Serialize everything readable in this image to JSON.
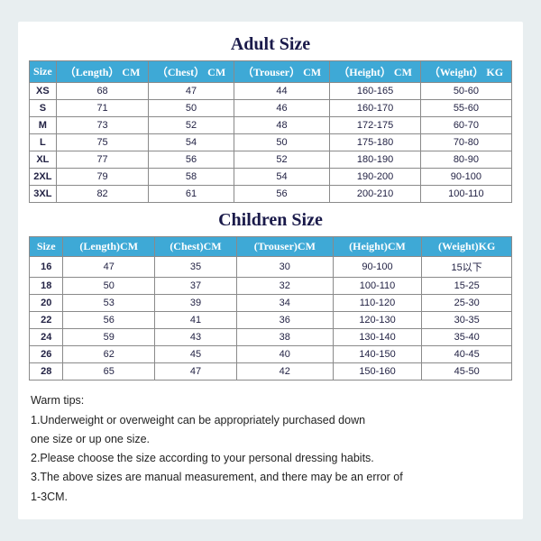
{
  "adult": {
    "title": "Adult Size",
    "columns": [
      "Size",
      "（Length） CM",
      "（Chest） CM",
      "（Trouser） CM",
      "（Height） CM",
      "（Weight） KG"
    ],
    "rows": [
      [
        "XS",
        "68",
        "47",
        "44",
        "160-165",
        "50-60"
      ],
      [
        "S",
        "71",
        "50",
        "46",
        "160-170",
        "55-60"
      ],
      [
        "M",
        "73",
        "52",
        "48",
        "172-175",
        "60-70"
      ],
      [
        "L",
        "75",
        "54",
        "50",
        "175-180",
        "70-80"
      ],
      [
        "XL",
        "77",
        "56",
        "52",
        "180-190",
        "80-90"
      ],
      [
        "2XL",
        "79",
        "58",
        "54",
        "190-200",
        "90-100"
      ],
      [
        "3XL",
        "82",
        "61",
        "56",
        "200-210",
        "100-110"
      ]
    ],
    "header_bg": "#3ea9d6",
    "header_fg": "#ffffff",
    "border_color": "#8a8a8a",
    "title_color": "#1a1a4a"
  },
  "children": {
    "title": "Children Size",
    "columns": [
      "Size",
      "(Length)CM",
      "(Chest)CM",
      "(Trouser)CM",
      "(Height)CM",
      "(Weight)KG"
    ],
    "rows": [
      [
        "16",
        "47",
        "35",
        "30",
        "90-100",
        "15以下"
      ],
      [
        "18",
        "50",
        "37",
        "32",
        "100-110",
        "15-25"
      ],
      [
        "20",
        "53",
        "39",
        "34",
        "110-120",
        "25-30"
      ],
      [
        "22",
        "56",
        "41",
        "36",
        "120-130",
        "30-35"
      ],
      [
        "24",
        "59",
        "43",
        "38",
        "130-140",
        "35-40"
      ],
      [
        "26",
        "62",
        "45",
        "40",
        "140-150",
        "40-45"
      ],
      [
        "28",
        "65",
        "47",
        "42",
        "150-160",
        "45-50"
      ]
    ]
  },
  "tips": {
    "title": "Warm tips:",
    "lines": [
      "1.Underweight or overweight can be appropriately purchased down",
      "one size or up one size.",
      "2.Please choose the size according to your personal dressing habits.",
      "3.The above sizes are manual measurement, and there may be an error of",
      "1-3CM."
    ]
  }
}
